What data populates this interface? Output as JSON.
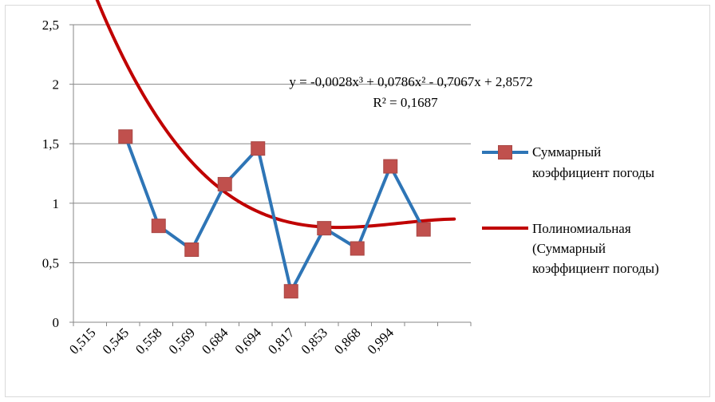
{
  "chart_data": {
    "type": "line",
    "categories": [
      "0,515",
      "0,545",
      "0,558",
      "0,569",
      "0,684",
      "0,694",
      "0,817",
      "0,853",
      "0,868",
      "0,994"
    ],
    "series": [
      {
        "name_lines": [
          "Суммарный",
          "коэффициент погоды"
        ],
        "x": [
          2,
          3,
          4,
          5,
          6,
          7,
          8,
          9,
          10,
          11
        ],
        "values": [
          1.56,
          0.81,
          0.61,
          1.16,
          1.46,
          0.26,
          0.79,
          0.62,
          1.31,
          0.78
        ],
        "color": "#2e75b6",
        "marker_color": "#c0504d"
      }
    ],
    "trendline": {
      "name_lines": [
        "Полиномиальная",
        "(Суммарный",
        "коэффициент погоды)"
      ],
      "coefficients": [
        -0.0028,
        0.0786,
        -0.7067,
        2.8572
      ],
      "x_range": [
        0,
        11
      ],
      "color": "#c00000"
    },
    "equation": "y = -0,0028x³ + 0,0786x² - 0,7067x + 2,8572",
    "r_squared": "R² = 0,1687",
    "y_ticks": [
      "0",
      "0,5",
      "1",
      "1,5",
      "2",
      "2,5"
    ],
    "ylim": [
      0,
      2.5
    ],
    "grid": "horizontal",
    "legend_position": "right"
  }
}
